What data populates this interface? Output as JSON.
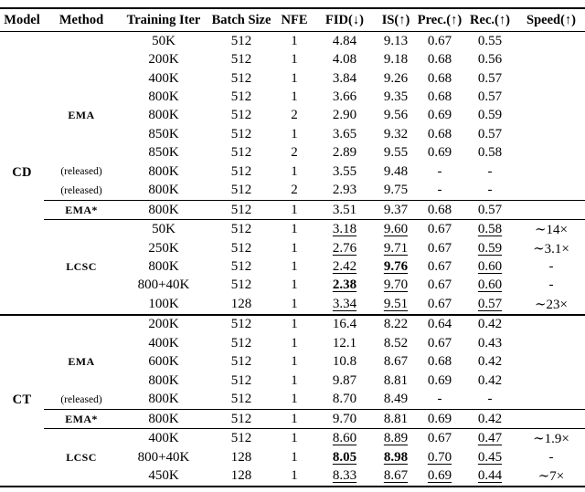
{
  "colors": {
    "text": "#000000",
    "background": "#ffffff",
    "rule": "#000000"
  },
  "table": {
    "columns": [
      "Model",
      "Method",
      "Training Iter",
      "Batch Size",
      "NFE",
      "FID(↓)",
      "IS(↑)",
      "Prec.(↑)",
      "Rec.(↑)",
      "Speed(↑)"
    ],
    "sections": [
      {
        "model": "CD",
        "rows": [
          {
            "method": "",
            "mk": "",
            "cells": [
              [
                "50K"
              ],
              [
                "512"
              ],
              [
                "1"
              ],
              [
                "4.84"
              ],
              [
                "9.13"
              ],
              [
                "0.67"
              ],
              [
                "0.55"
              ],
              [
                ""
              ]
            ]
          },
          {
            "method": "",
            "mk": "",
            "cells": [
              [
                "200K"
              ],
              [
                "512"
              ],
              [
                "1"
              ],
              [
                "4.08"
              ],
              [
                "9.18"
              ],
              [
                "0.68"
              ],
              [
                "0.56"
              ],
              [
                ""
              ]
            ]
          },
          {
            "method": "",
            "mk": "",
            "cells": [
              [
                "400K"
              ],
              [
                "512"
              ],
              [
                "1"
              ],
              [
                "3.84"
              ],
              [
                "9.26"
              ],
              [
                "0.68"
              ],
              [
                "0.57"
              ],
              [
                ""
              ]
            ]
          },
          {
            "method": "",
            "mk": "",
            "cells": [
              [
                "800K"
              ],
              [
                "512"
              ],
              [
                "1"
              ],
              [
                "3.66"
              ],
              [
                "9.35"
              ],
              [
                "0.68"
              ],
              [
                "0.57"
              ],
              [
                ""
              ]
            ]
          },
          {
            "method": "EMA",
            "mk": "label",
            "cells": [
              [
                "800K"
              ],
              [
                "512"
              ],
              [
                "2"
              ],
              [
                "2.90"
              ],
              [
                "9.56"
              ],
              [
                "0.69"
              ],
              [
                "0.59"
              ],
              [
                ""
              ]
            ]
          },
          {
            "method": "",
            "mk": "",
            "cells": [
              [
                "850K"
              ],
              [
                "512"
              ],
              [
                "1"
              ],
              [
                "3.65"
              ],
              [
                "9.32"
              ],
              [
                "0.68"
              ],
              [
                "0.57"
              ],
              [
                ""
              ]
            ]
          },
          {
            "method": "",
            "mk": "",
            "cells": [
              [
                "850K"
              ],
              [
                "512"
              ],
              [
                "2"
              ],
              [
                "2.89"
              ],
              [
                "9.55"
              ],
              [
                "0.69"
              ],
              [
                "0.58"
              ],
              [
                ""
              ]
            ]
          },
          {
            "method": "(released)",
            "mk": "released",
            "cells": [
              [
                "800K"
              ],
              [
                "512"
              ],
              [
                "1"
              ],
              [
                "3.55"
              ],
              [
                "9.48"
              ],
              [
                "-"
              ],
              [
                "-"
              ],
              [
                ""
              ]
            ]
          },
          {
            "method": "(released)",
            "mk": "released",
            "cells": [
              [
                "800K"
              ],
              [
                "512"
              ],
              [
                "2"
              ],
              [
                "2.93"
              ],
              [
                "9.75"
              ],
              [
                "-"
              ],
              [
                "-"
              ],
              [
                ""
              ]
            ]
          },
          {
            "method": "EMA*",
            "mk": "label",
            "cmid_above": true,
            "cmid_below": true,
            "cells": [
              [
                "800K"
              ],
              [
                "512"
              ],
              [
                "1"
              ],
              [
                "3.51"
              ],
              [
                "9.37"
              ],
              [
                "0.68"
              ],
              [
                "0.57"
              ],
              [
                ""
              ]
            ]
          },
          {
            "method": "",
            "mk": "",
            "cells": [
              [
                "50K"
              ],
              [
                "512"
              ],
              [
                "1"
              ],
              [
                "3.18",
                "u"
              ],
              [
                "9.60",
                "u"
              ],
              [
                "0.67"
              ],
              [
                "0.58",
                "u"
              ],
              [
                "∼14×"
              ]
            ]
          },
          {
            "method": "",
            "mk": "",
            "cells": [
              [
                "250K"
              ],
              [
                "512"
              ],
              [
                "1"
              ],
              [
                "2.76",
                "u"
              ],
              [
                "9.71",
                "u"
              ],
              [
                "0.67"
              ],
              [
                "0.59",
                "u"
              ],
              [
                "∼3.1×"
              ]
            ]
          },
          {
            "method": "LCSC",
            "mk": "label",
            "cells": [
              [
                "800K"
              ],
              [
                "512"
              ],
              [
                "1"
              ],
              [
                "2.42",
                "u"
              ],
              [
                "9.76",
                "bu"
              ],
              [
                "0.67"
              ],
              [
                "0.60",
                "u"
              ],
              [
                "-"
              ]
            ]
          },
          {
            "method": "",
            "mk": "",
            "cells": [
              [
                "800+40K"
              ],
              [
                "512"
              ],
              [
                "1"
              ],
              [
                "2.38",
                "bu"
              ],
              [
                "9.70",
                "u"
              ],
              [
                "0.67"
              ],
              [
                "0.60",
                "u"
              ],
              [
                "-"
              ]
            ]
          },
          {
            "method": "",
            "mk": "",
            "cells": [
              [
                "100K"
              ],
              [
                "128"
              ],
              [
                "1"
              ],
              [
                "3.34",
                "u"
              ],
              [
                "9.51",
                "u"
              ],
              [
                "0.67"
              ],
              [
                "0.57",
                "u"
              ],
              [
                "∼23×"
              ]
            ]
          }
        ]
      },
      {
        "model": "CT",
        "rows": [
          {
            "method": "",
            "mk": "",
            "cells": [
              [
                "200K"
              ],
              [
                "512"
              ],
              [
                "1"
              ],
              [
                "16.4"
              ],
              [
                "8.22"
              ],
              [
                "0.64"
              ],
              [
                "0.42"
              ],
              [
                ""
              ]
            ]
          },
          {
            "method": "",
            "mk": "",
            "cells": [
              [
                "400K"
              ],
              [
                "512"
              ],
              [
                "1"
              ],
              [
                "12.1"
              ],
              [
                "8.52"
              ],
              [
                "0.67"
              ],
              [
                "0.43"
              ],
              [
                ""
              ]
            ]
          },
          {
            "method": "EMA",
            "mk": "label",
            "cells": [
              [
                "600K"
              ],
              [
                "512"
              ],
              [
                "1"
              ],
              [
                "10.8"
              ],
              [
                "8.67"
              ],
              [
                "0.68"
              ],
              [
                "0.42"
              ],
              [
                ""
              ]
            ]
          },
          {
            "method": "",
            "mk": "",
            "cells": [
              [
                "800K"
              ],
              [
                "512"
              ],
              [
                "1"
              ],
              [
                "9.87"
              ],
              [
                "8.81"
              ],
              [
                "0.69"
              ],
              [
                "0.42"
              ],
              [
                ""
              ]
            ]
          },
          {
            "method": "(released)",
            "mk": "released",
            "cells": [
              [
                "800K"
              ],
              [
                "512"
              ],
              [
                "1"
              ],
              [
                "8.70"
              ],
              [
                "8.49"
              ],
              [
                "-"
              ],
              [
                "-"
              ],
              [
                ""
              ]
            ]
          },
          {
            "method": "EMA*",
            "mk": "label",
            "cmid_above": true,
            "cmid_below": true,
            "cells": [
              [
                "800K"
              ],
              [
                "512"
              ],
              [
                "1"
              ],
              [
                "9.70"
              ],
              [
                "8.81"
              ],
              [
                "0.69"
              ],
              [
                "0.42"
              ],
              [
                ""
              ]
            ]
          },
          {
            "method": "",
            "mk": "",
            "cells": [
              [
                "400K"
              ],
              [
                "512"
              ],
              [
                "1"
              ],
              [
                "8.60",
                "u"
              ],
              [
                "8.89",
                "u"
              ],
              [
                "0.67"
              ],
              [
                "0.47",
                "u"
              ],
              [
                "∼1.9×"
              ]
            ]
          },
          {
            "method": "LCSC",
            "mk": "label",
            "cells": [
              [
                "800+40K"
              ],
              [
                "128"
              ],
              [
                "1"
              ],
              [
                "8.05",
                "bu"
              ],
              [
                "8.98",
                "bu"
              ],
              [
                "0.70",
                "u"
              ],
              [
                "0.45",
                "u"
              ],
              [
                "-"
              ]
            ]
          },
          {
            "method": "",
            "mk": "",
            "cells": [
              [
                "450K"
              ],
              [
                "128"
              ],
              [
                "1"
              ],
              [
                "8.33",
                "u"
              ],
              [
                "8.67",
                "u"
              ],
              [
                "0.69",
                "u"
              ],
              [
                "0.44",
                "u"
              ],
              [
                "∼7×"
              ]
            ]
          }
        ]
      }
    ]
  }
}
